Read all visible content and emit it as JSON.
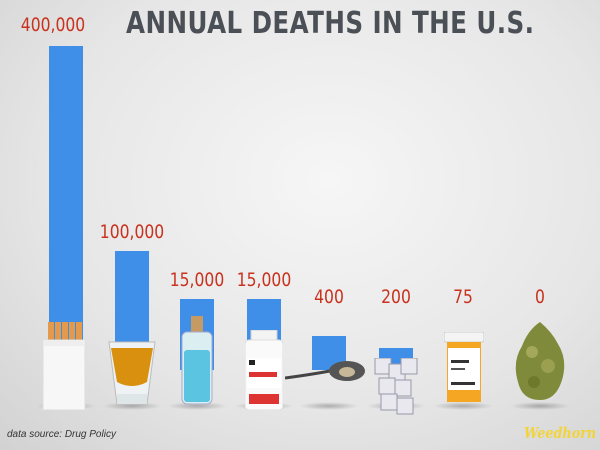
{
  "chart_data": {
    "type": "bar",
    "title": "ANNUAL DEATHS IN THE U.S.",
    "categories": [
      "Tobacco",
      "Alcohol",
      "Meth",
      "Pain relievers",
      "Heroin",
      "Cocaine",
      "Ecstasy",
      "Marijuana"
    ],
    "category_icons": [
      "cigarette-pack-icon",
      "shot-glass-icon",
      "crystal-vial-icon",
      "pain-reliever-bottle-icon",
      "spoon-icon",
      "sugar-cube-icon",
      "prescription-bottle-icon",
      "cannabis-bud-icon"
    ],
    "values": [
      400000,
      100000,
      15000,
      15000,
      400,
      200,
      75,
      0
    ],
    "value_labels": [
      "400,000",
      "100,000",
      "15,000",
      "15,000",
      "400",
      "200",
      "75",
      "0"
    ],
    "xlabel": "",
    "ylabel": "",
    "grid": false,
    "colors": {
      "bar": "#3f8fe9",
      "value_label": "#c8321e",
      "title": "#4b4f56"
    }
  },
  "footer": {
    "source": "data source: Drug Policy",
    "logo": "Weedhorn"
  }
}
